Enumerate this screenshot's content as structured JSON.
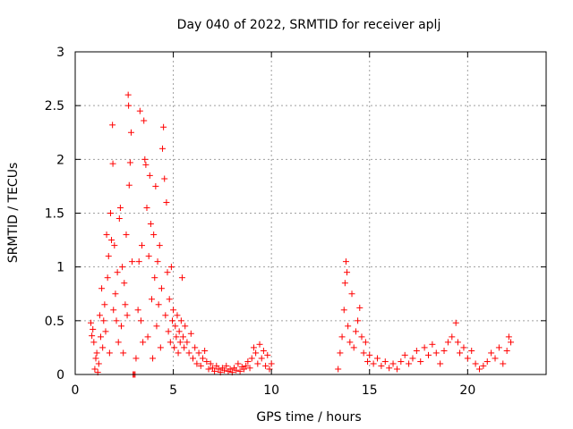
{
  "chart_data": {
    "type": "scatter",
    "title": "Day 040 of 2022, SRMTID for receiver aplj",
    "xlabel": "GPS time / hours",
    "ylabel": "SRMTID / TECUs",
    "xlim": [
      0,
      24
    ],
    "ylim": [
      0,
      3
    ],
    "xticks": [
      0,
      5,
      10,
      15,
      20
    ],
    "yticks": [
      0,
      0.5,
      1,
      1.5,
      2,
      2.5,
      3
    ],
    "x_tick_labels": [
      "0",
      "5",
      "10",
      "15",
      "20"
    ],
    "y_tick_labels": [
      "0",
      "0.5",
      "1",
      "1.5",
      "2",
      "2.5",
      "3"
    ],
    "grid": true,
    "marker": "plus",
    "color": "#ff0000",
    "series": [
      {
        "name": "SRMTID",
        "points": [
          [
            0.8,
            0.48
          ],
          [
            0.85,
            0.36
          ],
          [
            0.9,
            0.42
          ],
          [
            0.95,
            0.3
          ],
          [
            1.0,
            0.05
          ],
          [
            1.05,
            0.15
          ],
          [
            1.1,
            0.2
          ],
          [
            1.15,
            0.02
          ],
          [
            1.2,
            0.1
          ],
          [
            1.25,
            0.55
          ],
          [
            1.3,
            0.35
          ],
          [
            1.35,
            0.8
          ],
          [
            1.4,
            0.25
          ],
          [
            1.45,
            0.5
          ],
          [
            1.5,
            0.65
          ],
          [
            1.55,
            0.4
          ],
          [
            1.6,
            1.3
          ],
          [
            1.65,
            0.9
          ],
          [
            1.7,
            1.1
          ],
          [
            1.75,
            0.2
          ],
          [
            1.8,
            1.5
          ],
          [
            1.85,
            1.25
          ],
          [
            1.9,
            2.32
          ],
          [
            1.92,
            1.96
          ],
          [
            1.95,
            0.6
          ],
          [
            2.0,
            1.2
          ],
          [
            2.05,
            0.75
          ],
          [
            2.1,
            0.5
          ],
          [
            2.15,
            0.95
          ],
          [
            2.2,
            0.3
          ],
          [
            2.25,
            1.45
          ],
          [
            2.3,
            1.55
          ],
          [
            2.35,
            0.45
          ],
          [
            2.4,
            1.0
          ],
          [
            2.45,
            0.2
          ],
          [
            2.5,
            0.85
          ],
          [
            2.55,
            0.65
          ],
          [
            2.6,
            1.3
          ],
          [
            2.65,
            0.55
          ],
          [
            2.7,
            2.6
          ],
          [
            2.72,
            2.5
          ],
          [
            2.75,
            1.76
          ],
          [
            2.8,
            1.97
          ],
          [
            2.85,
            2.25
          ],
          [
            2.9,
            1.05
          ],
          [
            2.95,
            0.0
          ],
          [
            3.0,
            0.0
          ],
          [
            3.05,
            0.0
          ],
          [
            3.1,
            0.15
          ],
          [
            3.2,
            0.6
          ],
          [
            3.25,
            1.05
          ],
          [
            3.3,
            2.45
          ],
          [
            3.35,
            0.5
          ],
          [
            3.4,
            1.2
          ],
          [
            3.45,
            0.3
          ],
          [
            3.5,
            2.36
          ],
          [
            3.55,
            2.0
          ],
          [
            3.6,
            1.95
          ],
          [
            3.65,
            1.55
          ],
          [
            3.7,
            0.35
          ],
          [
            3.75,
            1.1
          ],
          [
            3.8,
            1.85
          ],
          [
            3.85,
            1.4
          ],
          [
            3.9,
            0.7
          ],
          [
            3.95,
            0.15
          ],
          [
            4.0,
            1.3
          ],
          [
            4.05,
            0.9
          ],
          [
            4.1,
            1.75
          ],
          [
            4.15,
            0.45
          ],
          [
            4.2,
            1.05
          ],
          [
            4.25,
            0.65
          ],
          [
            4.3,
            1.2
          ],
          [
            4.35,
            0.25
          ],
          [
            4.4,
            0.8
          ],
          [
            4.45,
            2.1
          ],
          [
            4.5,
            2.3
          ],
          [
            4.55,
            1.82
          ],
          [
            4.6,
            0.55
          ],
          [
            4.65,
            1.6
          ],
          [
            4.7,
            0.95
          ],
          [
            4.75,
            0.4
          ],
          [
            4.8,
            0.7
          ],
          [
            4.85,
            0.3
          ],
          [
            4.9,
            1.0
          ],
          [
            4.95,
            0.5
          ],
          [
            5.0,
            0.6
          ],
          [
            5.05,
            0.25
          ],
          [
            5.1,
            0.45
          ],
          [
            5.15,
            0.35
          ],
          [
            5.2,
            0.55
          ],
          [
            5.25,
            0.2
          ],
          [
            5.3,
            0.4
          ],
          [
            5.35,
            0.3
          ],
          [
            5.4,
            0.5
          ],
          [
            5.45,
            0.9
          ],
          [
            5.5,
            0.35
          ],
          [
            5.55,
            0.25
          ],
          [
            5.6,
            0.45
          ],
          [
            5.7,
            0.3
          ],
          [
            5.8,
            0.2
          ],
          [
            5.9,
            0.38
          ],
          [
            6.0,
            0.15
          ],
          [
            6.1,
            0.25
          ],
          [
            6.2,
            0.1
          ],
          [
            6.3,
            0.2
          ],
          [
            6.4,
            0.08
          ],
          [
            6.5,
            0.15
          ],
          [
            6.6,
            0.22
          ],
          [
            6.7,
            0.12
          ],
          [
            6.8,
            0.05
          ],
          [
            6.9,
            0.1
          ],
          [
            7.0,
            0.06
          ],
          [
            7.1,
            0.03
          ],
          [
            7.2,
            0.08
          ],
          [
            7.3,
            0.05
          ],
          [
            7.4,
            0.02
          ],
          [
            7.5,
            0.06
          ],
          [
            7.6,
            0.04
          ],
          [
            7.7,
            0.08
          ],
          [
            7.8,
            0.03
          ],
          [
            7.9,
            0.05
          ],
          [
            8.0,
            0.02
          ],
          [
            8.1,
            0.06
          ],
          [
            8.2,
            0.04
          ],
          [
            8.3,
            0.1
          ],
          [
            8.4,
            0.03
          ],
          [
            8.5,
            0.07
          ],
          [
            8.6,
            0.05
          ],
          [
            8.7,
            0.08
          ],
          [
            8.8,
            0.12
          ],
          [
            8.9,
            0.06
          ],
          [
            9.0,
            0.15
          ],
          [
            9.1,
            0.25
          ],
          [
            9.2,
            0.2
          ],
          [
            9.3,
            0.1
          ],
          [
            9.4,
            0.28
          ],
          [
            9.5,
            0.15
          ],
          [
            9.6,
            0.22
          ],
          [
            9.7,
            0.08
          ],
          [
            9.8,
            0.18
          ],
          [
            9.9,
            0.05
          ],
          [
            10.0,
            0.1
          ],
          [
            13.4,
            0.05
          ],
          [
            13.5,
            0.2
          ],
          [
            13.6,
            0.35
          ],
          [
            13.7,
            0.6
          ],
          [
            13.75,
            0.85
          ],
          [
            13.8,
            1.05
          ],
          [
            13.85,
            0.95
          ],
          [
            13.9,
            0.45
          ],
          [
            14.0,
            0.3
          ],
          [
            14.1,
            0.75
          ],
          [
            14.2,
            0.25
          ],
          [
            14.3,
            0.4
          ],
          [
            14.4,
            0.5
          ],
          [
            14.5,
            0.62
          ],
          [
            14.6,
            0.35
          ],
          [
            14.7,
            0.2
          ],
          [
            14.8,
            0.3
          ],
          [
            14.9,
            0.12
          ],
          [
            15.0,
            0.18
          ],
          [
            15.2,
            0.1
          ],
          [
            15.4,
            0.15
          ],
          [
            15.6,
            0.08
          ],
          [
            15.8,
            0.12
          ],
          [
            16.0,
            0.06
          ],
          [
            16.2,
            0.1
          ],
          [
            16.4,
            0.05
          ],
          [
            16.6,
            0.12
          ],
          [
            16.8,
            0.18
          ],
          [
            17.0,
            0.1
          ],
          [
            17.2,
            0.15
          ],
          [
            17.4,
            0.22
          ],
          [
            17.6,
            0.12
          ],
          [
            17.8,
            0.25
          ],
          [
            18.0,
            0.18
          ],
          [
            18.2,
            0.28
          ],
          [
            18.4,
            0.2
          ],
          [
            18.6,
            0.1
          ],
          [
            18.8,
            0.22
          ],
          [
            19.0,
            0.3
          ],
          [
            19.2,
            0.35
          ],
          [
            19.4,
            0.48
          ],
          [
            19.5,
            0.3
          ],
          [
            19.6,
            0.2
          ],
          [
            19.8,
            0.25
          ],
          [
            20.0,
            0.15
          ],
          [
            20.2,
            0.22
          ],
          [
            20.4,
            0.1
          ],
          [
            20.6,
            0.05
          ],
          [
            20.8,
            0.08
          ],
          [
            21.0,
            0.12
          ],
          [
            21.2,
            0.2
          ],
          [
            21.4,
            0.15
          ],
          [
            21.6,
            0.25
          ],
          [
            21.8,
            0.1
          ],
          [
            22.0,
            0.22
          ],
          [
            22.1,
            0.35
          ],
          [
            22.2,
            0.3
          ]
        ]
      }
    ]
  }
}
